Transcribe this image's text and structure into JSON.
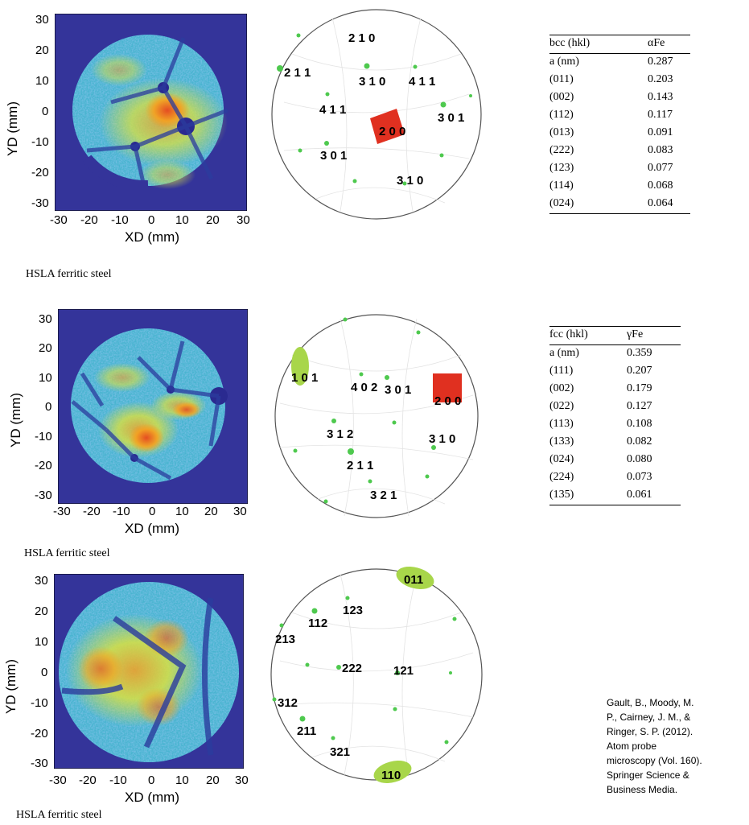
{
  "panels": [
    {
      "detector_map": {
        "y_label": "YD (mm)",
        "x_label": "XD (mm)",
        "y_ticks": [
          "30",
          "20",
          "10",
          "0",
          "-10",
          "-20",
          "-30"
        ],
        "x_ticks": [
          "-30",
          "-20",
          "-10",
          "0",
          "10",
          "20",
          "30"
        ]
      },
      "pole_figure": {
        "labels": [
          "2 1 0",
          "2 1 1",
          "3 1 0",
          "4 1 1",
          "4 1 1",
          "3 0 1",
          "2 0 0",
          "3 0 1",
          "3 1 0"
        ]
      },
      "caption": "HSLA ferritic steel",
      "table": {
        "col1": "bcc (hkl)",
        "col2": "αFe",
        "rows": [
          [
            "a (nm)",
            "0.287"
          ],
          [
            "(011)",
            "0.203"
          ],
          [
            "(002)",
            "0.143"
          ],
          [
            "(112)",
            "0.117"
          ],
          [
            "(013)",
            "0.091"
          ],
          [
            "(222)",
            "0.083"
          ],
          [
            "(123)",
            "0.077"
          ],
          [
            "(114)",
            "0.068"
          ],
          [
            "(024)",
            "0.064"
          ]
        ]
      }
    },
    {
      "detector_map": {
        "y_label": "YD (mm)",
        "x_label": "XD (mm)",
        "y_ticks": [
          "30",
          "20",
          "10",
          "0",
          "-10",
          "-20",
          "-30"
        ],
        "x_ticks": [
          "-30",
          "-20",
          "-10",
          "0",
          "10",
          "20",
          "30"
        ]
      },
      "pole_figure": {
        "labels": [
          "1 0 1",
          "4 0 2",
          "3 0 1",
          "2 0 0",
          "3 1 2",
          "3 1 0",
          "2 1 1",
          "3 2 1"
        ]
      },
      "caption": "HSLA ferritic steel",
      "table": {
        "col1": "fcc (hkl)",
        "col2": "γFe",
        "rows": [
          [
            "a (nm)",
            "0.359"
          ],
          [
            "(111)",
            "0.207"
          ],
          [
            "(002)",
            "0.179"
          ],
          [
            "(022)",
            "0.127"
          ],
          [
            "(113)",
            "0.108"
          ],
          [
            "(133)",
            "0.082"
          ],
          [
            "(024)",
            "0.080"
          ],
          [
            "(224)",
            "0.073"
          ],
          [
            "(135)",
            "0.061"
          ]
        ]
      }
    },
    {
      "detector_map": {
        "y_label": "YD (mm)",
        "x_label": "XD (mm)",
        "y_ticks": [
          "30",
          "20",
          "10",
          "0",
          "-10",
          "-20",
          "-30"
        ],
        "x_ticks": [
          "-30",
          "-20",
          "-10",
          "0",
          "10",
          "20",
          "30"
        ]
      },
      "pole_figure": {
        "labels": [
          "011",
          "123",
          "112",
          "213",
          "222",
          "121",
          "312",
          "211",
          "321",
          "110"
        ]
      },
      "caption": "HSLA ferritic steel"
    }
  ],
  "reference": [
    "Gault, B., Moody, M.",
    "P., Cairney, J. M., &",
    "Ringer, S. P. (2012).",
    "Atom probe",
    "microscopy (Vol. 160).",
    "Springer Science &",
    "Business Media."
  ],
  "colors": {
    "detector_bg": "#34349a",
    "hot": "#e8401c",
    "pole_green": "#4ec94e",
    "pole_blob": "#a8d64a",
    "pole_red": "#e03020"
  }
}
